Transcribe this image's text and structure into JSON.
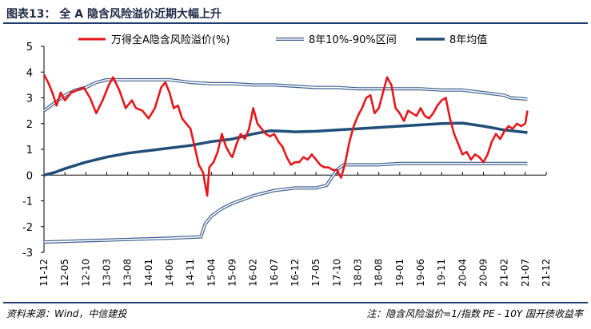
{
  "figure": {
    "label": "图表13：",
    "title": "全 A 隐含风险溢价近期大幅上升",
    "source": "资料来源：Wind，中信建投",
    "note": "注：隐含风险溢价=1/指数 PE - 10Y 国开债收益率"
  },
  "colors": {
    "risk_premium": "#e8161b",
    "band": "#3d5f8f",
    "mean": "#1f4e79",
    "rule": "#1f3d6e"
  },
  "chart_data": {
    "type": "line",
    "title": "",
    "xlabel": "",
    "ylabel": "",
    "ylim": [
      -3,
      5
    ],
    "yticks": [
      -3,
      -2,
      -1,
      0,
      1,
      2,
      3,
      4,
      5
    ],
    "xtick_labels": [
      "11-12",
      "12-05",
      "12-10",
      "13-03",
      "13-08",
      "14-01",
      "14-06",
      "14-11",
      "15-04",
      "15-09",
      "16-02",
      "16-07",
      "16-12",
      "17-05",
      "17-10",
      "18-03",
      "18-08",
      "19-01",
      "19-06",
      "19-11",
      "20-04",
      "20-09",
      "21-02",
      "21-07",
      "21-12"
    ],
    "legend_position": "top",
    "series": [
      {
        "name": "万得全A隐含风险溢价(%)",
        "style": "red-line",
        "points": [
          [
            0,
            3.9
          ],
          [
            0.2,
            3.6
          ],
          [
            0.4,
            3.2
          ],
          [
            0.6,
            2.7
          ],
          [
            0.8,
            3.2
          ],
          [
            1.0,
            2.9
          ],
          [
            1.3,
            3.2
          ],
          [
            1.6,
            3.3
          ],
          [
            1.9,
            3.4
          ],
          [
            2.2,
            3.0
          ],
          [
            2.5,
            2.4
          ],
          [
            2.8,
            2.9
          ],
          [
            3.1,
            3.5
          ],
          [
            3.3,
            3.8
          ],
          [
            3.6,
            3.3
          ],
          [
            3.9,
            2.6
          ],
          [
            4.2,
            2.9
          ],
          [
            4.4,
            2.6
          ],
          [
            4.7,
            2.5
          ],
          [
            5.0,
            2.2
          ],
          [
            5.3,
            2.6
          ],
          [
            5.6,
            3.4
          ],
          [
            5.8,
            3.6
          ],
          [
            6.0,
            3.2
          ],
          [
            6.2,
            2.6
          ],
          [
            6.4,
            2.7
          ],
          [
            6.6,
            2.2
          ],
          [
            6.8,
            2.0
          ],
          [
            7.0,
            1.8
          ],
          [
            7.2,
            1.1
          ],
          [
            7.4,
            0.4
          ],
          [
            7.6,
            0.1
          ],
          [
            7.8,
            -0.8
          ],
          [
            7.9,
            0.3
          ],
          [
            8.1,
            0.5
          ],
          [
            8.3,
            0.9
          ],
          [
            8.5,
            1.6
          ],
          [
            8.7,
            1.1
          ],
          [
            8.9,
            0.8
          ],
          [
            9.0,
            0.7
          ],
          [
            9.2,
            1.2
          ],
          [
            9.4,
            1.6
          ],
          [
            9.6,
            1.4
          ],
          [
            9.8,
            1.8
          ],
          [
            10.0,
            2.6
          ],
          [
            10.2,
            2.0
          ],
          [
            10.4,
            1.8
          ],
          [
            10.6,
            1.6
          ],
          [
            10.8,
            1.5
          ],
          [
            11.0,
            1.6
          ],
          [
            11.2,
            1.3
          ],
          [
            11.4,
            1.1
          ],
          [
            11.6,
            0.7
          ],
          [
            11.8,
            0.4
          ],
          [
            12.0,
            0.5
          ],
          [
            12.2,
            0.5
          ],
          [
            12.4,
            0.7
          ],
          [
            12.6,
            0.6
          ],
          [
            12.8,
            0.8
          ],
          [
            13.0,
            0.6
          ],
          [
            13.2,
            0.4
          ],
          [
            13.4,
            0.3
          ],
          [
            13.6,
            0.3
          ],
          [
            13.8,
            0.2
          ],
          [
            14.0,
            0.2
          ],
          [
            14.2,
            -0.1
          ],
          [
            14.4,
            0.5
          ],
          [
            14.6,
            1.3
          ],
          [
            14.8,
            1.9
          ],
          [
            15.0,
            2.3
          ],
          [
            15.2,
            2.6
          ],
          [
            15.4,
            3.0
          ],
          [
            15.6,
            3.1
          ],
          [
            15.8,
            2.4
          ],
          [
            16.0,
            2.6
          ],
          [
            16.2,
            3.2
          ],
          [
            16.4,
            3.8
          ],
          [
            16.6,
            3.5
          ],
          [
            16.8,
            2.6
          ],
          [
            17.0,
            2.4
          ],
          [
            17.2,
            2.1
          ],
          [
            17.4,
            2.5
          ],
          [
            17.6,
            2.4
          ],
          [
            17.8,
            2.3
          ],
          [
            18.0,
            2.6
          ],
          [
            18.2,
            2.3
          ],
          [
            18.4,
            2.2
          ],
          [
            18.6,
            2.4
          ],
          [
            18.8,
            2.7
          ],
          [
            19.0,
            2.9
          ],
          [
            19.2,
            3.0
          ],
          [
            19.4,
            2.2
          ],
          [
            19.6,
            1.6
          ],
          [
            19.8,
            1.2
          ],
          [
            20.0,
            0.8
          ],
          [
            20.2,
            0.9
          ],
          [
            20.4,
            0.6
          ],
          [
            20.6,
            0.8
          ],
          [
            20.8,
            0.7
          ],
          [
            21.0,
            0.5
          ],
          [
            21.2,
            0.8
          ],
          [
            21.4,
            1.3
          ],
          [
            21.6,
            1.6
          ],
          [
            21.8,
            1.4
          ],
          [
            22.0,
            1.7
          ],
          [
            22.2,
            1.9
          ],
          [
            22.4,
            1.8
          ],
          [
            22.6,
            2.0
          ],
          [
            22.8,
            1.9
          ],
          [
            23.0,
            2.0
          ],
          [
            23.1,
            2.5
          ]
        ]
      },
      {
        "name": "8年10%-90%区间",
        "style": "double-line",
        "upper": [
          [
            0,
            2.5
          ],
          [
            0.5,
            2.8
          ],
          [
            1.0,
            3.1
          ],
          [
            1.5,
            3.3
          ],
          [
            2.0,
            3.4
          ],
          [
            2.5,
            3.6
          ],
          [
            3.0,
            3.7
          ],
          [
            3.5,
            3.7
          ],
          [
            4.0,
            3.7
          ],
          [
            5.0,
            3.7
          ],
          [
            6.0,
            3.7
          ],
          [
            7.0,
            3.6
          ],
          [
            8.0,
            3.55
          ],
          [
            9.0,
            3.55
          ],
          [
            10.0,
            3.5
          ],
          [
            11.0,
            3.5
          ],
          [
            12.0,
            3.45
          ],
          [
            13.0,
            3.4
          ],
          [
            14.0,
            3.4
          ],
          [
            15.0,
            3.35
          ],
          [
            16.0,
            3.35
          ],
          [
            17.0,
            3.35
          ],
          [
            18.0,
            3.35
          ],
          [
            19.0,
            3.3
          ],
          [
            20.0,
            3.3
          ],
          [
            21.0,
            3.2
          ],
          [
            22.0,
            3.1
          ],
          [
            22.3,
            3.0
          ],
          [
            23.1,
            2.95
          ]
        ],
        "lower": [
          [
            0,
            -2.6
          ],
          [
            2.0,
            -2.55
          ],
          [
            4.0,
            -2.5
          ],
          [
            6.0,
            -2.45
          ],
          [
            7.5,
            -2.4
          ],
          [
            7.7,
            -1.9
          ],
          [
            8.0,
            -1.6
          ],
          [
            8.5,
            -1.3
          ],
          [
            9.0,
            -1.1
          ],
          [
            10.0,
            -0.8
          ],
          [
            11.0,
            -0.6
          ],
          [
            12.0,
            -0.5
          ],
          [
            13.0,
            -0.5
          ],
          [
            13.5,
            -0.4
          ],
          [
            14.0,
            0.2
          ],
          [
            14.3,
            0.4
          ],
          [
            15.0,
            0.4
          ],
          [
            16.0,
            0.4
          ],
          [
            17.0,
            0.45
          ],
          [
            18.0,
            0.45
          ],
          [
            19.0,
            0.45
          ],
          [
            20.0,
            0.45
          ],
          [
            21.0,
            0.45
          ],
          [
            22.0,
            0.45
          ],
          [
            23.1,
            0.45
          ]
        ]
      },
      {
        "name": "8年均值",
        "style": "thick-line",
        "points": [
          [
            0,
            0.0
          ],
          [
            0.5,
            0.1
          ],
          [
            1.0,
            0.25
          ],
          [
            2.0,
            0.5
          ],
          [
            3.0,
            0.7
          ],
          [
            4.0,
            0.85
          ],
          [
            5.0,
            0.95
          ],
          [
            6.0,
            1.05
          ],
          [
            7.0,
            1.15
          ],
          [
            8.0,
            1.3
          ],
          [
            9.0,
            1.4
          ],
          [
            10.0,
            1.6
          ],
          [
            10.8,
            1.72
          ],
          [
            11.5,
            1.7
          ],
          [
            12.0,
            1.68
          ],
          [
            13.0,
            1.7
          ],
          [
            14.0,
            1.75
          ],
          [
            15.0,
            1.8
          ],
          [
            16.0,
            1.85
          ],
          [
            17.0,
            1.9
          ],
          [
            18.0,
            1.95
          ],
          [
            19.0,
            2.0
          ],
          [
            20.0,
            2.02
          ],
          [
            21.0,
            1.9
          ],
          [
            22.0,
            1.75
          ],
          [
            23.1,
            1.65
          ]
        ]
      }
    ]
  }
}
